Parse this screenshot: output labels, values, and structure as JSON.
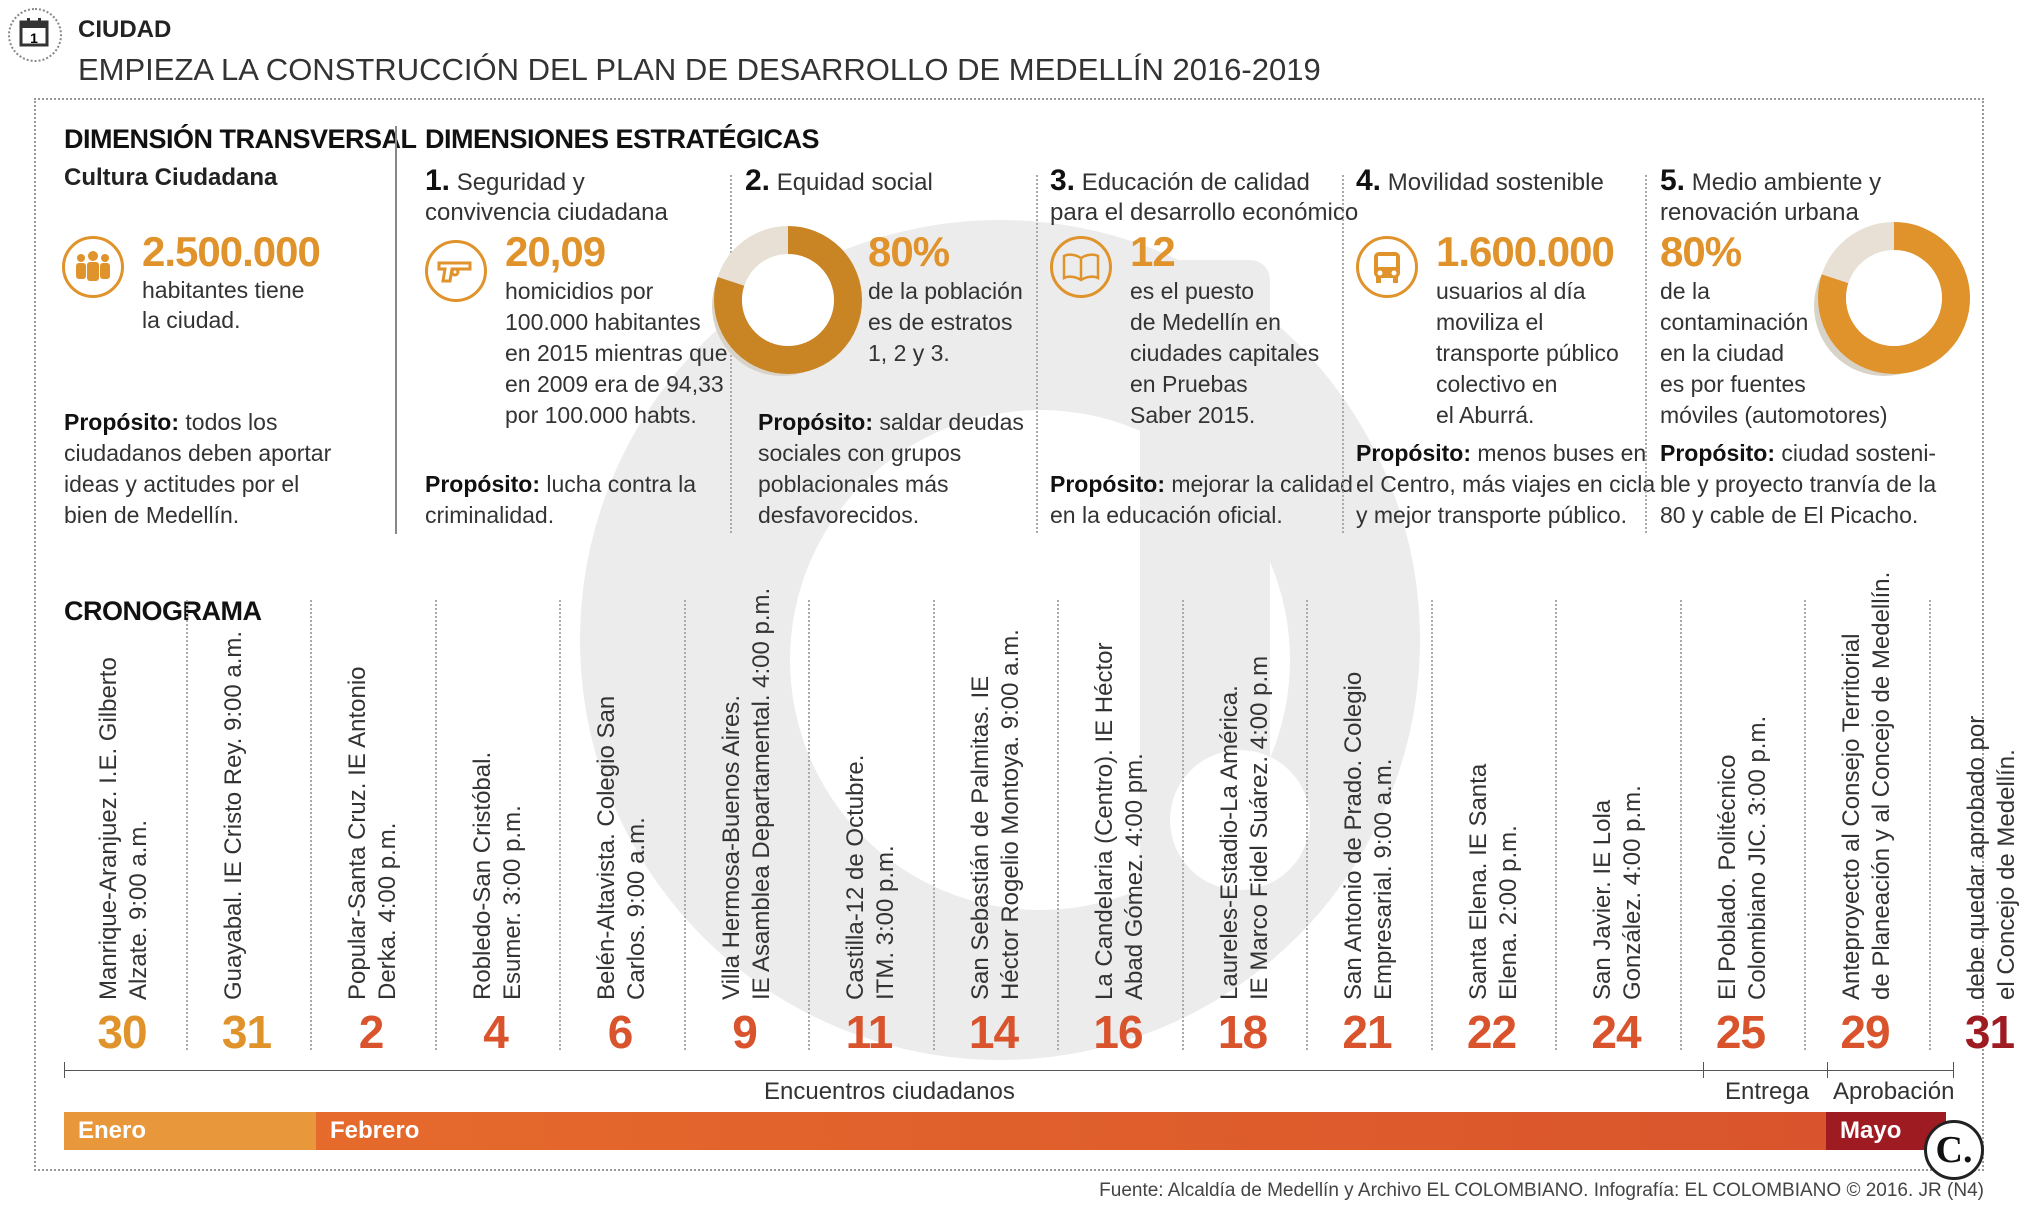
{
  "header": {
    "section": "CIUDAD",
    "title": "EMPIEZA LA CONSTRUCCIÓN DEL PLAN DE DESARROLLO DE MEDELLÍN 2016-2019",
    "calendar_day": "1"
  },
  "transversal": {
    "heading": "DIMENSIÓN TRANSVERSAL",
    "subheading": "Cultura Ciudadana",
    "value": "2.500.000",
    "desc_1": "habitantes tiene",
    "desc_2": "la ciudad.",
    "purpose_label": "Propósito:",
    "purpose_1": " todos los",
    "purpose_2": "ciudadanos deben aportar",
    "purpose_3": "ideas y actitudes por el",
    "purpose_4": "bien de Medellín."
  },
  "strategic": {
    "heading": "DIMENSIONES ESTRATÉGICAS",
    "items": [
      {
        "num": "1.",
        "title_1": " Seguridad y",
        "title_2": "convivencia ciudadana",
        "value": "20,09",
        "desc": [
          "homicidios por",
          "100.000 habitantes",
          "en 2015 mientras que",
          "en 2009 era de 94,33",
          "por 100.000 habts."
        ],
        "purpose_label": "Propósito:",
        "purpose": [
          " lucha contra la",
          "criminalidad."
        ]
      },
      {
        "num": "2.",
        "title_1": " Equidad social",
        "title_2": "",
        "value": "80%",
        "percent": 80,
        "desc": [
          "de la población",
          "es de estratos",
          "1, 2 y 3."
        ],
        "purpose_label": "Propósito:",
        "purpose": [
          " saldar deudas",
          "sociales con grupos",
          "poblacionales más",
          "desfavorecidos."
        ]
      },
      {
        "num": "3.",
        "title_1": " Educación de calidad",
        "title_2": "para el desarrollo económico",
        "value": "12",
        "desc": [
          "es el puesto",
          "de Medellín en",
          "ciudades capitales",
          "en Pruebas",
          "Saber 2015."
        ],
        "purpose_label": "Propósito:",
        "purpose": [
          " mejorar la calidad",
          "en la educación oficial."
        ]
      },
      {
        "num": "4.",
        "title_1": " Movilidad sostenible",
        "title_2": "",
        "value": "1.600.000",
        "desc": [
          "usuarios al día",
          "moviliza el",
          "transporte público",
          "colectivo en",
          "el Aburrá."
        ],
        "purpose_label": "Propósito:",
        "purpose": [
          " menos buses en",
          "el Centro, más viajes en cicla",
          "y mejor transporte público."
        ]
      },
      {
        "num": "5.",
        "title_1": " Medio ambiente y",
        "title_2": "renovación urbana",
        "value": "80%",
        "percent": 80,
        "desc": [
          "de la",
          "contaminación",
          "en la ciudad",
          "es por fuentes",
          "móviles (automotores)"
        ],
        "purpose_label": "Propósito:",
        "purpose": [
          " ciudad sosteni-",
          "ble y proyecto tranvía de la",
          "80 y cable de El Picacho."
        ]
      }
    ]
  },
  "schedule": {
    "heading": "CRONOGRAMA",
    "items": [
      {
        "day": "30",
        "l1": "Manrique-Aranjuez. I.E. Gilberto",
        "l2": "Alzate. 9:00 a.m."
      },
      {
        "day": "31",
        "l1": "Guayabal. IE Cristo Rey. 9:00 a.m.",
        "l2": ""
      },
      {
        "day": "2",
        "l1": "Popular-Santa Cruz. IE Antonio",
        "l2": "Derka. 4:00 p.m."
      },
      {
        "day": "4",
        "l1": "Robledo-San Cristóbal.",
        "l2": "Esumer. 3:00 p.m."
      },
      {
        "day": "6",
        "l1": "Belén-Altavista. Colegio San",
        "l2": "Carlos. 9:00 a.m."
      },
      {
        "day": "9",
        "l1": "Villa Hermosa-Buenos Aires.",
        "l2": "IE Asamblea Departamental. 4:00 p.m."
      },
      {
        "day": "11",
        "l1": "Castilla-12 de Octubre.",
        "l2": "ITM. 3:00 p.m."
      },
      {
        "day": "14",
        "l1": "San Sebastián de Palmitas. IE",
        "l2": "Héctor Rogelio Montoya. 9:00 a.m."
      },
      {
        "day": "16",
        "l1": "La Candelaria (Centro). IE Héctor",
        "l2": "Abad Gómez. 4:00 pm."
      },
      {
        "day": "18",
        "l1": "Laureles-Estadio-La América.",
        "l2": "IE Marco Fidel Suárez. 4:00 p.m"
      },
      {
        "day": "21",
        "l1": "San Antonio de Prado. Colegio",
        "l2": "Empresarial. 9:00 a.m."
      },
      {
        "day": "22",
        "l1": "Santa Elena. IE Santa",
        "l2": "Elena. 2:00 p.m."
      },
      {
        "day": "24",
        "l1": "San Javier. IE Lola",
        "l2": "González. 4:00 p.m."
      },
      {
        "day": "25",
        "l1": "El Poblado. Politécnico",
        "l2": "Colombiano JIC. 3:00 p.m."
      },
      {
        "day": "29",
        "l1": "Anteproyecto al Consejo Territorial",
        "l2": "de Planeación y al Concejo de Medellín."
      },
      {
        "day": "31",
        "l1": "debe quedar aprobado por",
        "l2": "el Concejo de Medellín."
      }
    ],
    "phase_meetings": "Encuentros ciudadanos",
    "phase_delivery": "Entrega",
    "phase_approval": "Aprobación",
    "months": {
      "jan": "Enero",
      "feb": "Febrero",
      "may": "Mayo"
    }
  },
  "footer": {
    "source": "Fuente: Alcaldía de Medellín y Archivo EL COLOMBIANO. Infografía: EL COLOMBIANO © 2016. JR (N4)",
    "logo": "C."
  },
  "colors": {
    "orange": "#e0922b",
    "red": "#d9542c",
    "dark_red": "#9e1b22"
  }
}
